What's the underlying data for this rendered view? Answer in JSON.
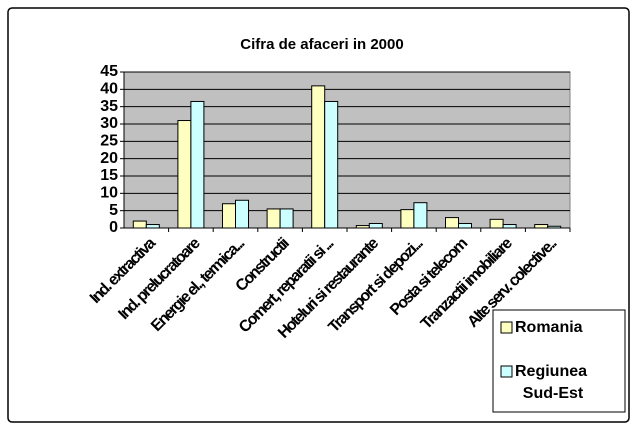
{
  "chart_data": {
    "type": "bar",
    "title": "Cifra de afaceri in 2000",
    "categories": [
      "Ind. extractiva",
      "Ind. prelucratoare",
      "Energie el., termica...",
      "Constructii",
      "Comert, reparatii si ...",
      "Hoteluri si restaurante",
      "Transport si depozi...",
      "Posta si telecom",
      "Tranzactii imobiliare",
      "Alte serv. colective.."
    ],
    "series": [
      {
        "name": "Romania",
        "color": "#ffffc0",
        "values": [
          2,
          31,
          7,
          5.5,
          41,
          0.7,
          5.3,
          3,
          2.5,
          1
        ]
      },
      {
        "name": "Regiunea Sud-Est",
        "color": "#ccffff",
        "values": [
          1,
          36.5,
          8,
          5.5,
          36.5,
          1.3,
          7.3,
          1.3,
          1,
          0.5
        ]
      }
    ],
    "ylim": [
      0,
      45
    ],
    "yticks": [
      0,
      5,
      10,
      15,
      20,
      25,
      30,
      35,
      40,
      45
    ],
    "grid": true,
    "legend": "bottom right"
  }
}
